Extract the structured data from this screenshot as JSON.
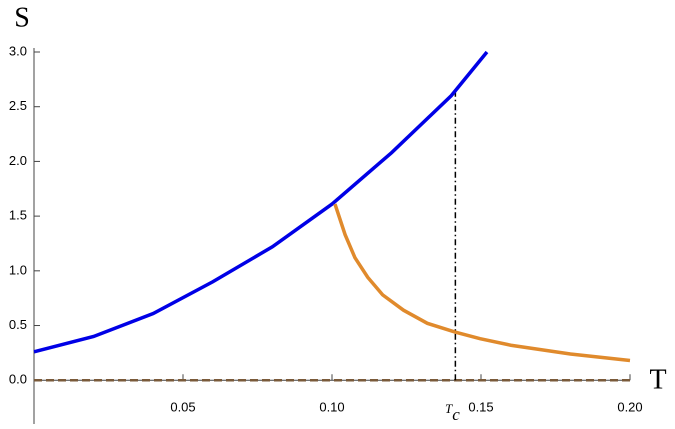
{
  "chart_data": {
    "type": "line",
    "xlabel": "T",
    "ylabel": "S",
    "xlim": [
      0,
      0.2
    ],
    "ylim": [
      -0.4,
      3.0
    ],
    "xticks": [
      0.05,
      {
        "value": 0.1,
        "label": "0.10"
      },
      0.15,
      {
        "value": 0.2,
        "label": "0.20"
      }
    ],
    "yticks": [
      {
        "value": 0,
        "label": "0.0"
      },
      0.5,
      {
        "value": 1,
        "label": "1.0"
      },
      1.5,
      {
        "value": 2,
        "label": "2.0"
      },
      2.5,
      {
        "value": 3,
        "label": "3.0"
      }
    ],
    "series": [
      {
        "color": "#0000e6",
        "x": [
          0,
          0.02,
          0.04,
          0.06,
          0.08,
          0.1,
          0.12,
          0.14,
          0.152
        ],
        "values": [
          0.26,
          0.4,
          0.61,
          0.9,
          1.22,
          1.61,
          2.08,
          2.6,
          3.0
        ]
      },
      {
        "color": "#e08a2c",
        "x": [
          0.101,
          0.1044,
          0.1077,
          0.112,
          0.117,
          0.124,
          0.132,
          0.1413,
          0.1497,
          0.16,
          0.18,
          0.2
        ],
        "values": [
          1.61,
          1.33,
          1.12,
          0.94,
          0.78,
          0.64,
          0.52,
          0.44,
          0.38,
          0.32,
          0.24,
          0.18
        ]
      }
    ],
    "hline": {
      "value": 0,
      "color": "#7a5a3a"
    },
    "annotation": {
      "text": "T",
      "subscript": "c",
      "x": 0.1414,
      "y_top": 2.63
    }
  }
}
